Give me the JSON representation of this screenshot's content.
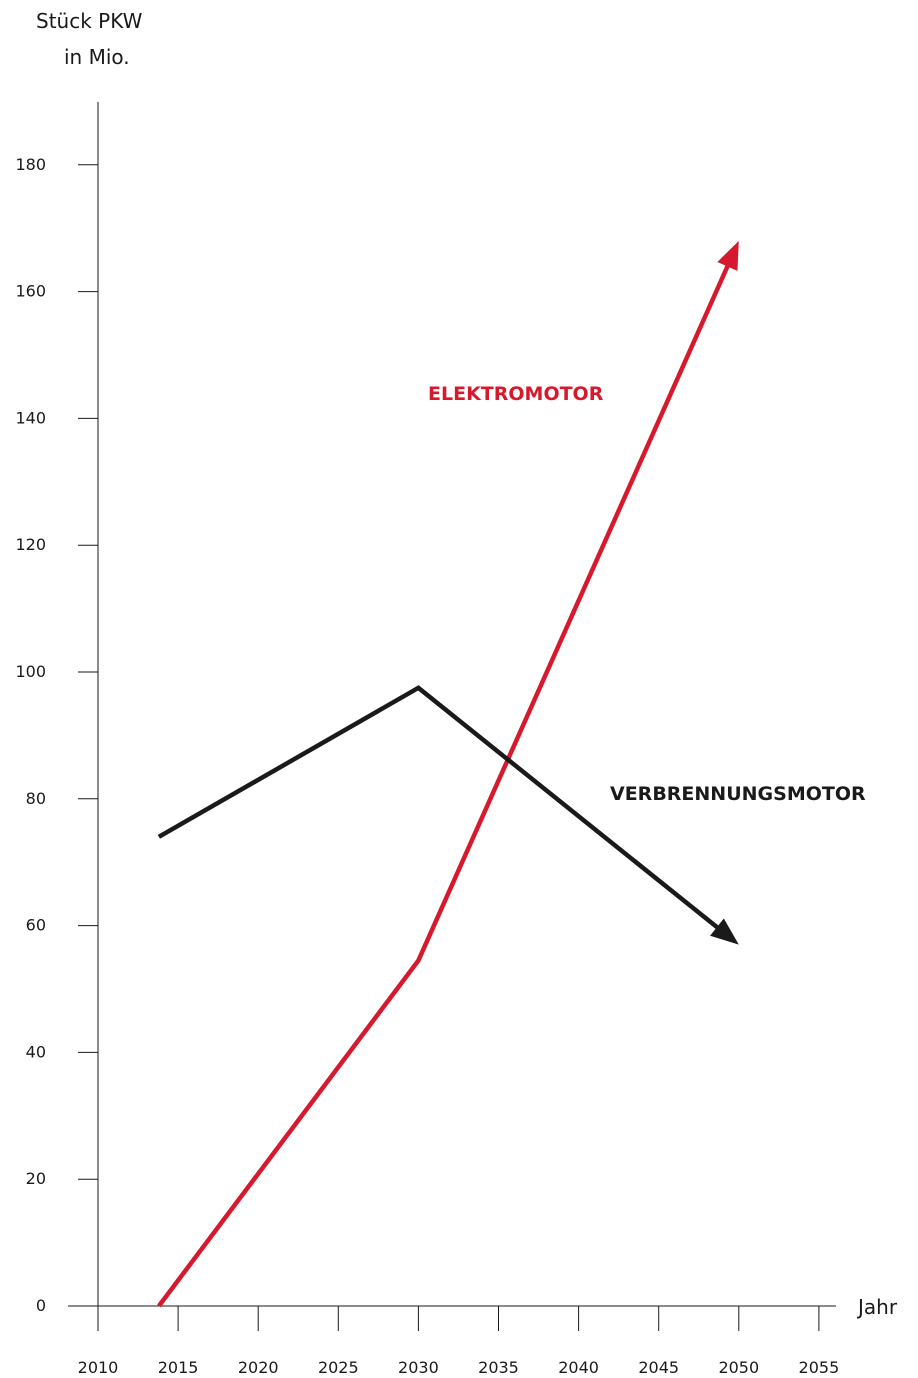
{
  "chart_data": {
    "type": "line",
    "title": "",
    "ylabel": [
      "Stück PKW",
      "in Mio."
    ],
    "xlabel": "Jahr",
    "xlim": [
      2010,
      2057
    ],
    "ylim": [
      0,
      190
    ],
    "x_ticks": [
      "2010",
      "2015",
      "2020",
      "2025",
      "2030",
      "2035",
      "2040",
      "2045",
      "2050",
      "2055"
    ],
    "y_ticks": [
      "0",
      "20",
      "40",
      "60",
      "80",
      "100",
      "120",
      "140",
      "160",
      "180"
    ],
    "grid": false,
    "series": [
      {
        "name": "ELEKTROMOTOR",
        "color": "#d7192d",
        "x": [
          2013.8,
          2030,
          2050
        ],
        "y": [
          0,
          54.5,
          168
        ]
      },
      {
        "name": "VERBRENNUNGSMOTOR",
        "color": "#1a1a1a",
        "x": [
          2013.8,
          2030,
          2050
        ],
        "y": [
          74,
          97.5,
          57
        ]
      }
    ]
  }
}
